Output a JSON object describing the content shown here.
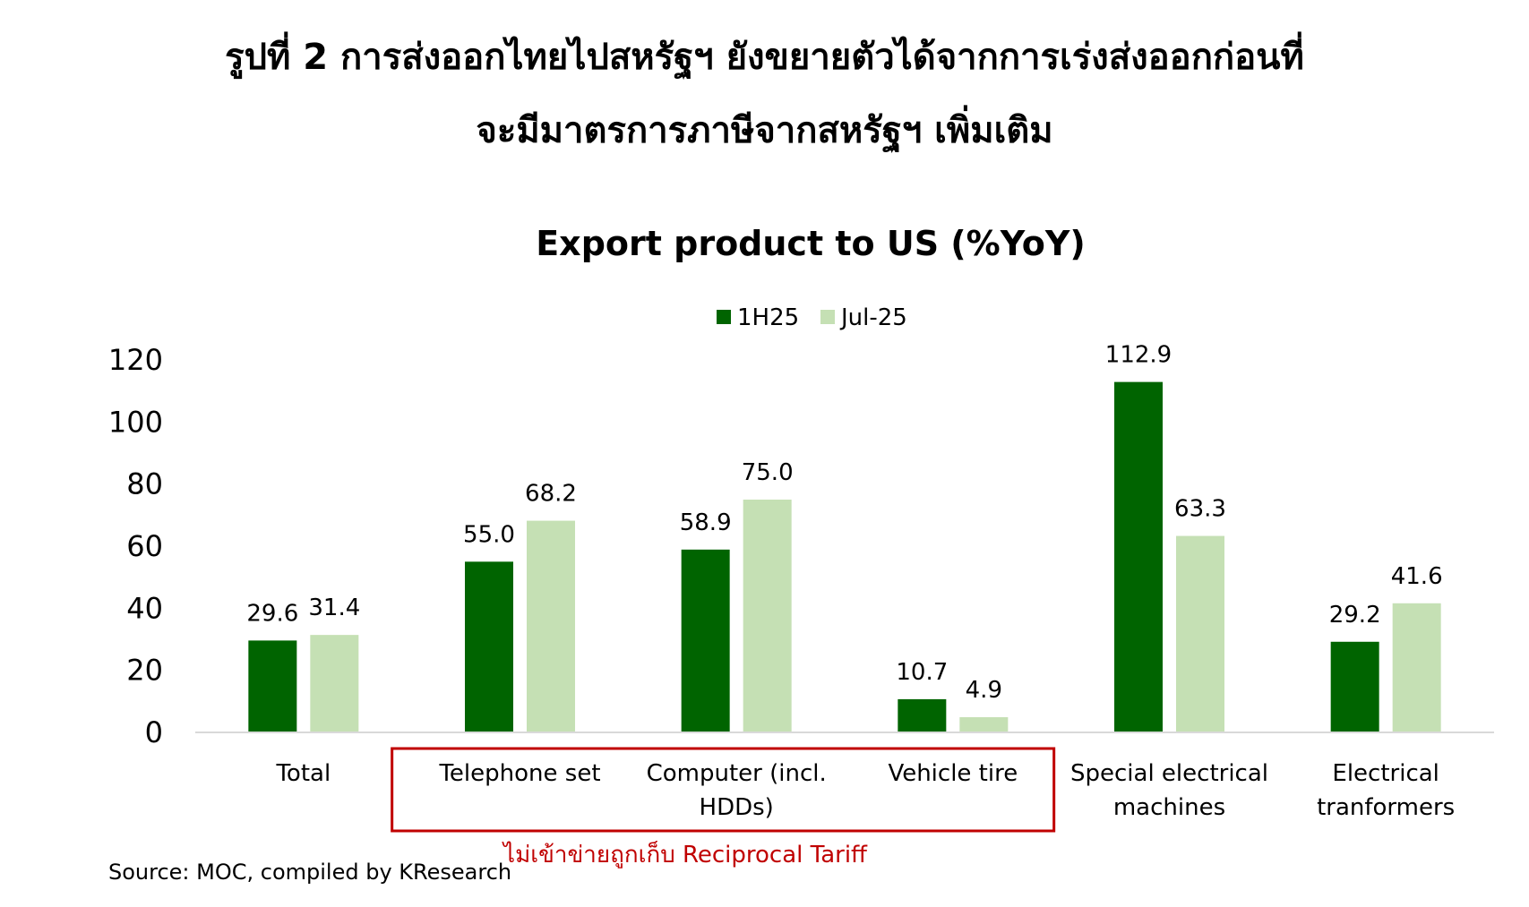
{
  "heading": {
    "line1": "รูปที่ 2 การส่งออกไทยไปสหรัฐฯ ยังขยายตัวได้จากการเร่งส่งออกก่อนที่",
    "line2": "จะมีมาตรการภาษีจากสหรัฐฯ เพิ่มเติม"
  },
  "chart_data": {
    "type": "bar",
    "title": "Export product to US (%YoY)",
    "xlabel": "",
    "ylabel": "",
    "categories": [
      [
        "Total"
      ],
      [
        "Telephone set"
      ],
      [
        "Computer (incl.",
        "HDDs)"
      ],
      [
        "Vehicle tire"
      ],
      [
        "Special electrical",
        "machines"
      ],
      [
        "Electrical",
        "tranformers"
      ]
    ],
    "series": [
      {
        "name": "1H25",
        "values": [
          29.6,
          55.0,
          58.9,
          10.7,
          112.9,
          29.2
        ],
        "color": "#006400"
      },
      {
        "name": "Jul-25",
        "values": [
          31.4,
          68.2,
          75.0,
          4.9,
          63.3,
          41.6
        ],
        "color": "#c5e0b4"
      }
    ],
    "yticks": [
      0,
      20,
      40,
      60,
      80,
      100,
      120
    ],
    "ylim": [
      0,
      120
    ],
    "grid": false,
    "legend_position": "top-center",
    "data_labels": true
  },
  "annotation": {
    "text": "ไม่เข้าข่ายถูกเก็บ Reciprocal Tariff",
    "color": "#c00000",
    "highlighted_categories": [
      "Telephone set",
      "Computer (incl. HDDs)",
      "Vehicle tire"
    ]
  },
  "source": "Source: MOC, compiled by KResearch"
}
